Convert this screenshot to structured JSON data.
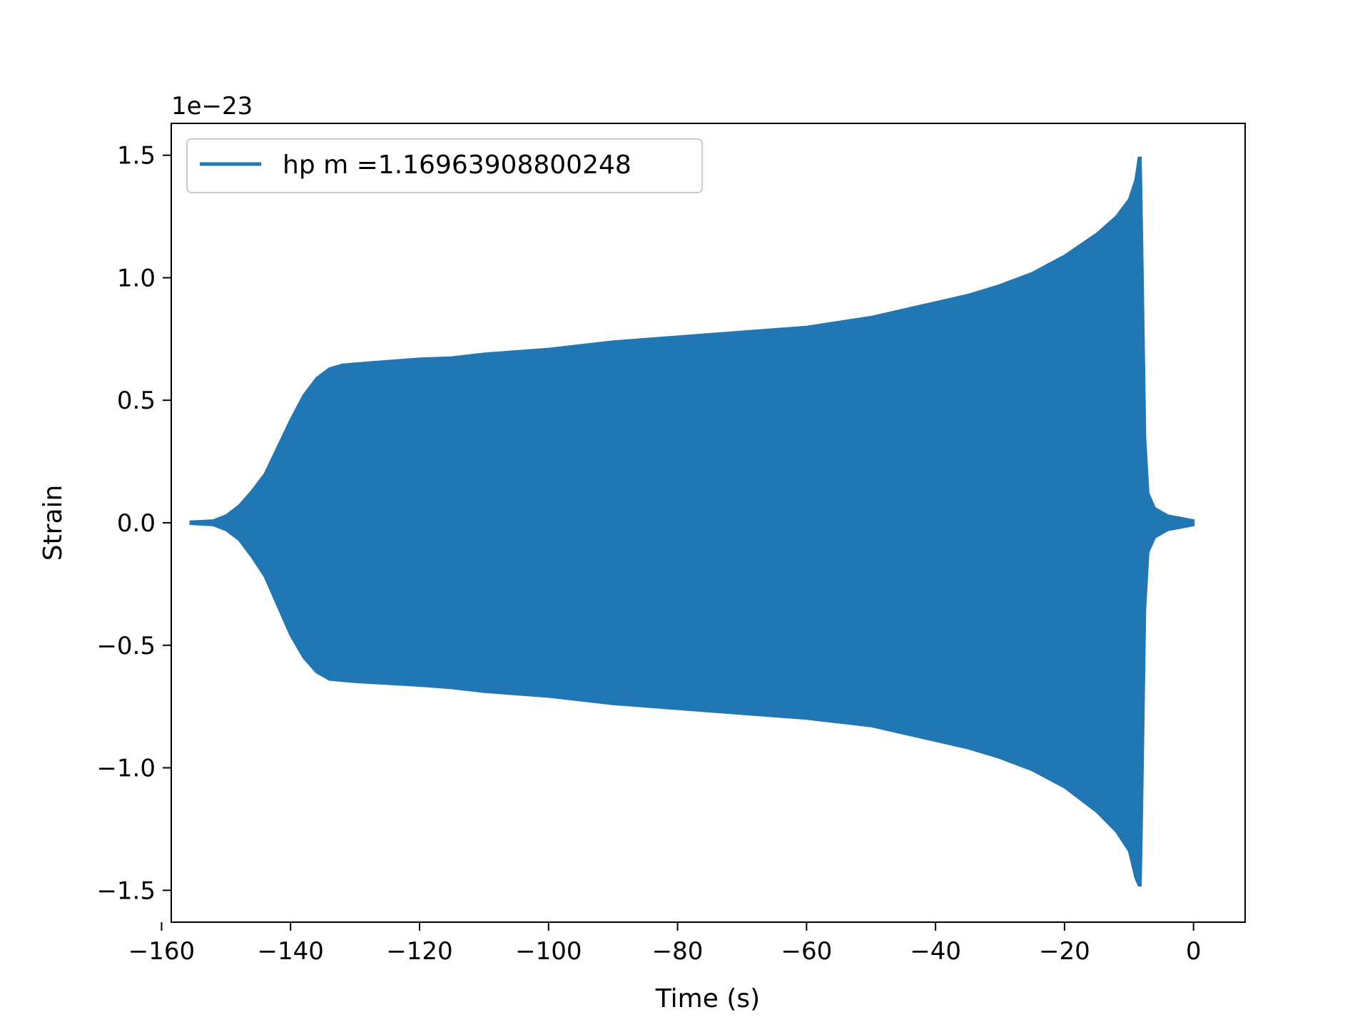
{
  "chart_data": {
    "type": "line",
    "title": "",
    "xlabel": "Time (s)",
    "ylabel": "Strain",
    "y_offset_label": "1e−23",
    "y_scale_exponent": -23,
    "xlim": [
      -158.5,
      8
    ],
    "ylim": [
      -1.63,
      1.63
    ],
    "x_ticks": [
      -160,
      -140,
      -120,
      -100,
      -80,
      -60,
      -40,
      -20,
      0
    ],
    "x_tick_labels": [
      "−160",
      "−140",
      "−120",
      "−100",
      "−80",
      "−60",
      "−40",
      "−20",
      "0"
    ],
    "y_ticks": [
      -1.5,
      -1.0,
      -0.5,
      0.0,
      0.5,
      1.0,
      1.5
    ],
    "y_tick_labels": [
      "−1.5",
      "−1.0",
      "−0.5",
      "0.0",
      "0.5",
      "1.0",
      "1.5"
    ],
    "grid": false,
    "legend_position": "upper-left",
    "series": [
      {
        "name": "hp m =1.16963908800248",
        "color": "#2077b4",
        "envelope": {
          "x": [
            -155.5,
            -152,
            -150,
            -148,
            -146,
            -144,
            -142,
            -140,
            -138,
            -136,
            -134,
            -132,
            -130,
            -120,
            -115,
            -110,
            -100,
            -90,
            -80,
            -70,
            -60,
            -50,
            -45,
            -40,
            -35,
            -30,
            -25,
            -20,
            -15,
            -12,
            -10,
            -9,
            -8.5,
            -8.2,
            -8.0,
            -7.5,
            -7.0,
            -6.0,
            -4.0,
            -2.0,
            0.0
          ],
          "upper": [
            0.005,
            0.01,
            0.03,
            0.07,
            0.13,
            0.2,
            0.31,
            0.42,
            0.52,
            0.59,
            0.63,
            0.645,
            0.65,
            0.67,
            0.675,
            0.69,
            0.71,
            0.74,
            0.76,
            0.78,
            0.8,
            0.84,
            0.87,
            0.9,
            0.93,
            0.97,
            1.02,
            1.09,
            1.18,
            1.25,
            1.32,
            1.4,
            1.49,
            1.49,
            1.2,
            0.35,
            0.12,
            0.06,
            0.03,
            0.02,
            0.01
          ],
          "lower": [
            -0.005,
            -0.01,
            -0.03,
            -0.07,
            -0.14,
            -0.22,
            -0.34,
            -0.46,
            -0.55,
            -0.61,
            -0.64,
            -0.645,
            -0.65,
            -0.665,
            -0.675,
            -0.69,
            -0.71,
            -0.74,
            -0.76,
            -0.78,
            -0.8,
            -0.83,
            -0.86,
            -0.89,
            -0.92,
            -0.96,
            -1.01,
            -1.08,
            -1.18,
            -1.26,
            -1.34,
            -1.45,
            -1.48,
            -1.48,
            -1.2,
            -0.35,
            -0.12,
            -0.06,
            -0.03,
            -0.02,
            -0.01
          ]
        }
      }
    ]
  }
}
